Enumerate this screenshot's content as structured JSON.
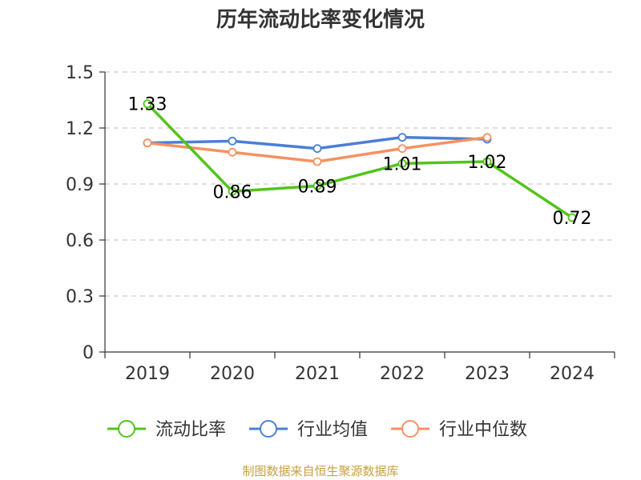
{
  "chart_data": {
    "type": "line",
    "title": "历年流动比率变化情况",
    "categories": [
      "2019",
      "2020",
      "2021",
      "2022",
      "2023",
      "2024"
    ],
    "ylim": [
      0,
      1.5
    ],
    "yticks": [
      "0",
      "0.3",
      "0.6",
      "0.9",
      "1.2",
      "1.5"
    ],
    "grid": true,
    "legend_position": "bottom",
    "series": [
      {
        "name": "流动比率",
        "color": "#52c41a",
        "values": [
          1.33,
          0.86,
          0.89,
          1.01,
          1.02,
          0.72
        ],
        "labels": [
          "1.33",
          "0.86",
          "0.89",
          "1.01",
          "1.02",
          "0.72"
        ]
      },
      {
        "name": "行业均值",
        "color": "#4a7fd8",
        "values": [
          1.12,
          1.13,
          1.09,
          1.15,
          1.14,
          null
        ]
      },
      {
        "name": "行业中位数",
        "color": "#f59262",
        "values": [
          1.12,
          1.07,
          1.02,
          1.09,
          1.15,
          null
        ]
      }
    ]
  },
  "source": "制图数据来自恒生聚源数据库"
}
